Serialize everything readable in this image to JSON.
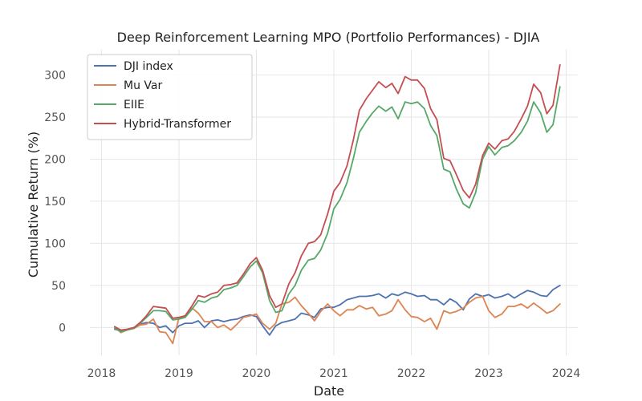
{
  "chart_data": {
    "type": "line",
    "title": "Deep Reinforcement Learning MPO (Portfolio Performances) - DJIA",
    "xlabel": "Date",
    "ylabel": "Cumulative Return (%)",
    "xlim": [
      2017.85,
      2024.15
    ],
    "ylim": [
      -33,
      330
    ],
    "x_ticks": [
      2018,
      2019,
      2020,
      2021,
      2022,
      2023,
      2024
    ],
    "x_tick_labels": [
      "2018",
      "2019",
      "2020",
      "2021",
      "2022",
      "2023",
      "2024"
    ],
    "y_ticks": [
      0,
      50,
      100,
      150,
      200,
      250,
      300
    ],
    "y_tick_labels": [
      "0",
      "50",
      "100",
      "150",
      "200",
      "250",
      "300"
    ],
    "grid": true,
    "legend_position": "top-left",
    "x": [
      2018.17,
      2018.25,
      2018.33,
      2018.42,
      2018.5,
      2018.58,
      2018.67,
      2018.75,
      2018.83,
      2018.92,
      2019.0,
      2019.08,
      2019.17,
      2019.25,
      2019.33,
      2019.42,
      2019.5,
      2019.58,
      2019.67,
      2019.75,
      2019.83,
      2019.92,
      2020.0,
      2020.08,
      2020.17,
      2020.25,
      2020.33,
      2020.42,
      2020.5,
      2020.58,
      2020.67,
      2020.75,
      2020.83,
      2020.92,
      2021.0,
      2021.08,
      2021.17,
      2021.25,
      2021.33,
      2021.42,
      2021.5,
      2021.58,
      2021.67,
      2021.75,
      2021.83,
      2021.92,
      2022.0,
      2022.08,
      2022.17,
      2022.25,
      2022.33,
      2022.42,
      2022.5,
      2022.58,
      2022.67,
      2022.75,
      2022.83,
      2022.92,
      2023.0,
      2023.08,
      2023.17,
      2023.25,
      2023.33,
      2023.42,
      2023.5,
      2023.58,
      2023.67,
      2023.75,
      2023.83,
      2023.92
    ],
    "series": [
      {
        "name": "DJI index",
        "color": "#4c72b0",
        "values": [
          -2,
          -4,
          -3,
          0,
          4,
          6,
          5,
          0,
          2,
          -6,
          2,
          5,
          5,
          8,
          0,
          8,
          9,
          7,
          9,
          10,
          13,
          15,
          13,
          2,
          -9,
          2,
          6,
          8,
          10,
          17,
          15,
          12,
          22,
          24,
          24,
          27,
          33,
          35,
          37,
          37,
          38,
          40,
          35,
          40,
          38,
          42,
          40,
          37,
          38,
          33,
          33,
          27,
          34,
          30,
          21,
          34,
          40,
          37,
          39,
          35,
          37,
          40,
          35,
          40,
          44,
          42,
          38,
          37,
          45,
          50
        ]
      },
      {
        "name": "Mu Var",
        "color": "#dd8452",
        "values": [
          1,
          -6,
          -3,
          -1,
          3,
          4,
          10,
          -5,
          -6,
          -19,
          12,
          13,
          23,
          17,
          7,
          7,
          0,
          3,
          -3,
          4,
          12,
          14,
          16,
          5,
          -2,
          5,
          28,
          30,
          36,
          26,
          17,
          8,
          19,
          28,
          20,
          14,
          21,
          21,
          26,
          22,
          24,
          14,
          16,
          20,
          33,
          21,
          13,
          12,
          7,
          11,
          -2,
          20,
          17,
          19,
          23,
          30,
          35,
          37,
          20,
          12,
          16,
          25,
          25,
          28,
          23,
          29,
          23,
          17,
          20,
          28
        ]
      },
      {
        "name": "EIIE",
        "color": "#55a868",
        "values": [
          -1,
          -5,
          -3,
          -1,
          5,
          12,
          20,
          20,
          19,
          9,
          10,
          12,
          22,
          32,
          30,
          35,
          37,
          45,
          47,
          50,
          60,
          72,
          79,
          65,
          32,
          18,
          20,
          40,
          50,
          68,
          80,
          82,
          92,
          112,
          141,
          152,
          172,
          200,
          232,
          245,
          255,
          263,
          257,
          262,
          248,
          268,
          266,
          268,
          260,
          240,
          228,
          188,
          185,
          165,
          147,
          142,
          160,
          200,
          215,
          205,
          214,
          216,
          222,
          232,
          245,
          268,
          255,
          232,
          241,
          286
        ]
      },
      {
        "name": "Hybrid-Transformer",
        "color": "#c44e52",
        "values": [
          1,
          -3,
          -2,
          0,
          6,
          14,
          25,
          24,
          23,
          11,
          12,
          14,
          26,
          38,
          36,
          40,
          42,
          50,
          51,
          53,
          63,
          76,
          83,
          68,
          38,
          24,
          28,
          52,
          65,
          85,
          100,
          102,
          110,
          135,
          162,
          172,
          192,
          222,
          258,
          272,
          282,
          292,
          285,
          290,
          278,
          298,
          294,
          294,
          284,
          260,
          247,
          201,
          198,
          182,
          163,
          154,
          170,
          204,
          219,
          212,
          222,
          224,
          233,
          248,
          263,
          289,
          279,
          254,
          264,
          312
        ]
      }
    ]
  }
}
